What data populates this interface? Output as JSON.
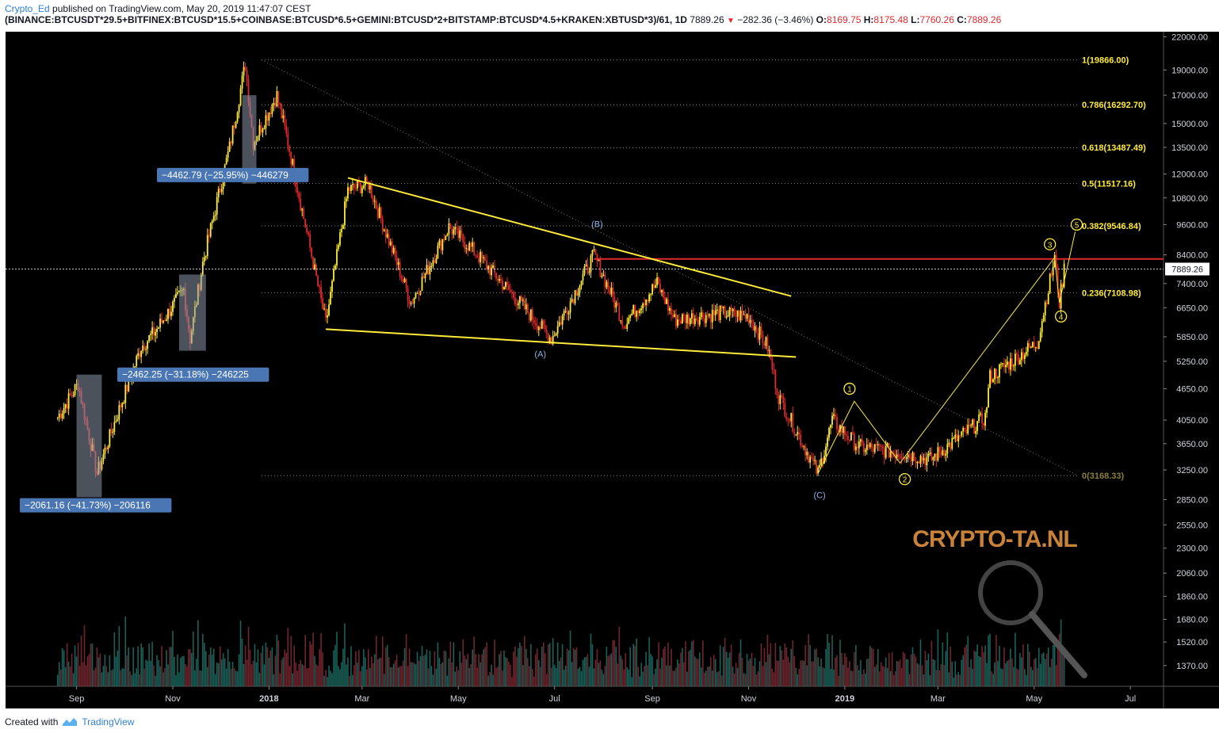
{
  "header": {
    "author": "Crypto_Ed",
    "published_text": "published on TradingView.com, May 20, 2019 11:47:07 CEST",
    "symbol": "(BINANCE:BTCUSDT*29.5+BITFINEX:BTCUSD*15.5+COINBASE:BTCUSD*6.5+GEMINI:BTCUSD*2+BITSTAMP:BTCUSD*4.5+KRAKEN:XBTUSD*3)/61, 1D",
    "last_price": "7889.26",
    "change": "−282.36 (−3.46%)",
    "o_label": "O:",
    "o_value": "8169.75",
    "h_label": "H:",
    "h_value": "8175.48",
    "l_label": "L:",
    "l_value": "7760.26",
    "c_label": "C:",
    "c_value": "7889.26"
  },
  "footer": {
    "created_with": "Created with",
    "brand": "TradingView"
  },
  "watermark": "CRYPTO-TA.NL",
  "colors": {
    "up": "#ffeb3b",
    "down": "#e0292e",
    "fib": "#ffeb3b",
    "trendline": "#ffeb3b",
    "resistance": "#e0292e",
    "label_box": "#4a77b4",
    "wave_blue": "#8fb1e6",
    "volume_up": "#1d6b63",
    "volume_down": "#7c2a33",
    "background": "#000000",
    "watermark": "#c8823a"
  },
  "chart_data": {
    "type": "candlestick",
    "log_scale": true,
    "x_ticks": [
      "Sep",
      "Nov",
      "2018",
      "Mar",
      "May",
      "Jul",
      "Sep",
      "Nov",
      "2019",
      "Mar",
      "May",
      "Jul"
    ],
    "y_ticks": [
      22000,
      19000,
      17000,
      15000,
      13500,
      12000,
      10800,
      9600,
      8400,
      7400,
      6650,
      5850,
      5250,
      4650,
      4050,
      3650,
      3250,
      2850,
      2550,
      2300,
      2060,
      1860,
      1680,
      1520,
      1370
    ],
    "y_range": [
      1250,
      22500
    ],
    "last_price_label": "7889.26",
    "fib_levels": [
      {
        "ratio_label": "1(19866.00)",
        "price": 19866
      },
      {
        "ratio_label": "0.786(16292.70)",
        "price": 16292.7
      },
      {
        "ratio_label": "0.618(13487.49)",
        "price": 13487.49
      },
      {
        "ratio_label": "0.5(11517.16)",
        "price": 11517.16
      },
      {
        "ratio_label": "0.382(9546.84)",
        "price": 9546.84
      },
      {
        "ratio_label": "0.236(7108.98)",
        "price": 7108.98
      },
      {
        "ratio_label": "0(3168.33)",
        "price": 3168.33
      }
    ],
    "resistance_price": 8250,
    "drawdown_labels": [
      "−2061.16 (−41.73%) −206116",
      "−2462.25 (−31.18%) −246225",
      "−4462.79 (−25.95%) −446279"
    ],
    "wave_labels_abc": [
      "(A)",
      "(B)",
      "(C)"
    ],
    "wave_labels_impulse": [
      "1",
      "2",
      "3",
      "4",
      "5"
    ],
    "series": [
      {
        "dates": [
          "2017-08-20",
          "2017-09-02",
          "2017-09-14",
          "2017-09-25",
          "2017-10-12",
          "2017-10-21",
          "2017-11-08",
          "2017-11-12",
          "2017-11-20",
          "2017-12-07",
          "2017-12-17",
          "2017-12-22",
          "2018-01-06",
          "2018-01-13",
          "2018-02-06",
          "2018-02-20",
          "2018-03-05",
          "2018-04-01",
          "2018-04-25",
          "2018-05-10",
          "2018-06-29",
          "2018-07-26",
          "2018-08-14",
          "2018-09-04",
          "2018-09-15",
          "2018-10-15",
          "2018-11-01",
          "2018-11-13",
          "2018-11-20",
          "2018-12-15",
          "2018-12-24",
          "2019-01-10",
          "2019-02-07",
          "2019-02-24",
          "2019-03-31",
          "2019-04-03",
          "2019-05-03",
          "2019-05-14",
          "2019-05-17",
          "2019-05-20"
        ],
        "close": [
          4100,
          4750,
          3200,
          4000,
          5600,
          6000,
          7200,
          5800,
          8100,
          13500,
          19500,
          13800,
          17000,
          13800,
          6200,
          11200,
          11500,
          6800,
          9500,
          8600,
          5800,
          8400,
          6200,
          7400,
          6300,
          6500,
          6400,
          5600,
          4500,
          3200,
          4050,
          3600,
          3500,
          3400,
          4100,
          4900,
          5700,
          8300,
          6800,
          7900
        ]
      }
    ]
  }
}
